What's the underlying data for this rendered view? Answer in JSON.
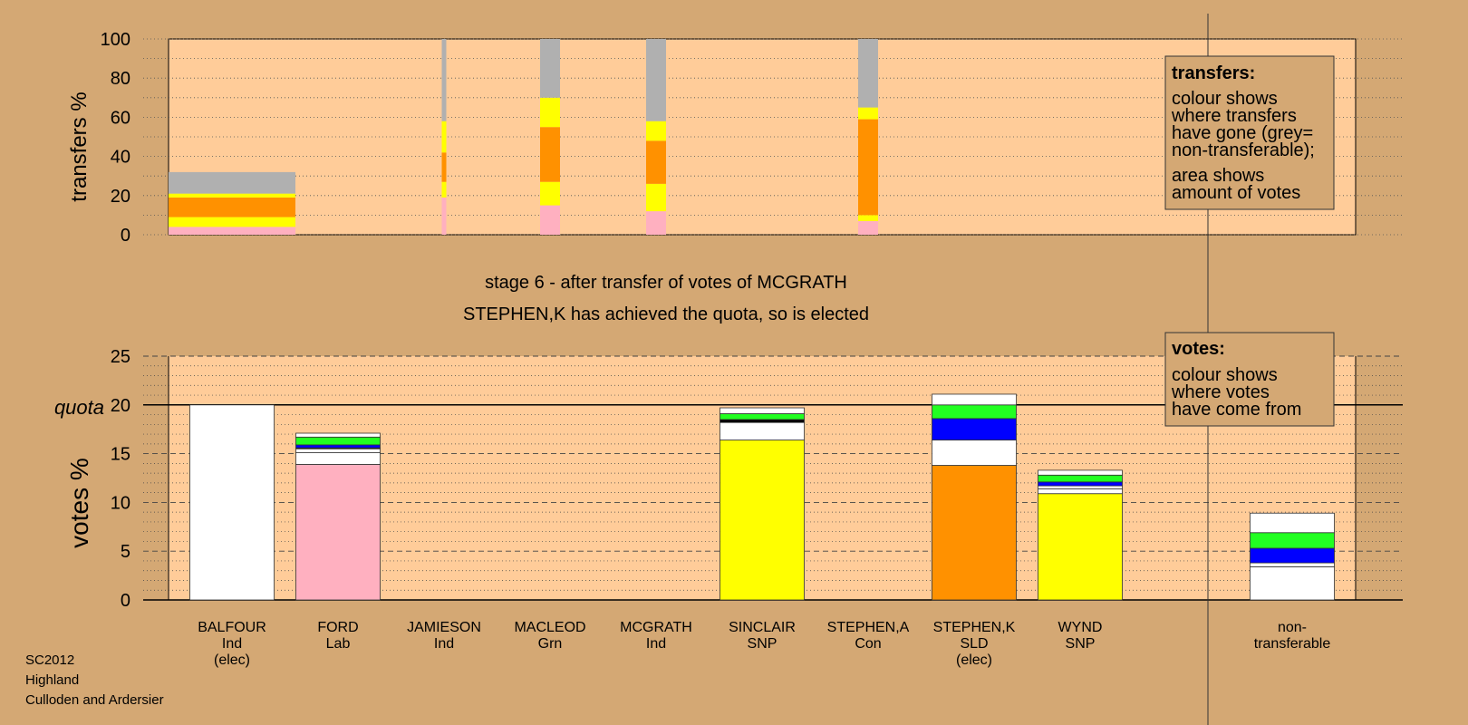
{
  "colors": {
    "background": "#d4a874",
    "plot_bg": "#ffcc99",
    "grey": "#b0b0b0",
    "yellow": "#ffff00",
    "orange": "#ff9100",
    "pink": "#ffb0c0",
    "white": "#ffffff",
    "blue": "#0000ff",
    "green": "#22ff22",
    "black": "#000000"
  },
  "stage_text": "stage 6 - after transfer of votes of MCGRATH",
  "elected_text": "STEPHEN,K has achieved the quota, so is elected",
  "footer": [
    "SC2012",
    "Highland",
    "Culloden and Ardersier"
  ],
  "legend_transfers": {
    "title": "transfers:",
    "lines": [
      "colour shows",
      "where transfers",
      "have gone (grey=",
      "non-transferable);",
      "area shows",
      "amount of votes"
    ]
  },
  "legend_votes": {
    "title": "votes:",
    "lines": [
      "colour shows",
      "where votes",
      "have come from"
    ]
  },
  "candidates": [
    {
      "name": "BALFOUR",
      "party": "Ind",
      "status": "(elec)"
    },
    {
      "name": "FORD",
      "party": "Lab",
      "status": ""
    },
    {
      "name": "JAMIESON",
      "party": "Ind",
      "status": ""
    },
    {
      "name": "MACLEOD",
      "party": "Grn",
      "status": ""
    },
    {
      "name": "MCGRATH",
      "party": "Ind",
      "status": ""
    },
    {
      "name": "SINCLAIR",
      "party": "SNP",
      "status": ""
    },
    {
      "name": "STEPHEN,A",
      "party": "Con",
      "status": ""
    },
    {
      "name": "STEPHEN,K",
      "party": "SLD",
      "status": "(elec)"
    },
    {
      "name": "WYND",
      "party": "SNP",
      "status": ""
    },
    {
      "name": "non-",
      "party": "transferable",
      "status": ""
    }
  ],
  "chart_data": [
    {
      "type": "bar",
      "stacked": true,
      "ylabel": "transfers %",
      "ylim": [
        0,
        100
      ],
      "yticks": [
        0,
        20,
        40,
        60,
        80,
        100
      ],
      "grid": true,
      "bars": [
        {
          "slot": 0,
          "width": "wide",
          "segments": [
            {
              "color": "pink",
              "value": 4
            },
            {
              "color": "yellow",
              "value": 5
            },
            {
              "color": "orange",
              "value": 10
            },
            {
              "color": "yellow",
              "value": 2
            },
            {
              "color": "grey",
              "value": 11
            }
          ]
        },
        {
          "slot": 2,
          "width": "hairline",
          "segments": [
            {
              "color": "pink",
              "value": 19
            },
            {
              "color": "yellow",
              "value": 8
            },
            {
              "color": "orange",
              "value": 15
            },
            {
              "color": "yellow",
              "value": 16
            },
            {
              "color": "grey",
              "value": 42
            }
          ]
        },
        {
          "slot": 3,
          "width": "narrow",
          "segments": [
            {
              "color": "pink",
              "value": 15
            },
            {
              "color": "yellow",
              "value": 12
            },
            {
              "color": "orange",
              "value": 28
            },
            {
              "color": "yellow",
              "value": 15
            },
            {
              "color": "grey",
              "value": 30
            }
          ]
        },
        {
          "slot": 4,
          "width": "narrow",
          "segments": [
            {
              "color": "pink",
              "value": 12
            },
            {
              "color": "yellow",
              "value": 14
            },
            {
              "color": "orange",
              "value": 22
            },
            {
              "color": "yellow",
              "value": 10
            },
            {
              "color": "grey",
              "value": 42
            }
          ]
        },
        {
          "slot": 6,
          "width": "narrow",
          "segments": [
            {
              "color": "pink",
              "value": 7
            },
            {
              "color": "yellow",
              "value": 3
            },
            {
              "color": "orange",
              "value": 49
            },
            {
              "color": "yellow",
              "value": 6
            },
            {
              "color": "grey",
              "value": 35
            }
          ]
        }
      ]
    },
    {
      "type": "bar",
      "stacked": true,
      "ylabel": "votes %",
      "ylim": [
        0,
        25
      ],
      "yticks": [
        0,
        5,
        10,
        15,
        20,
        25
      ],
      "quota": 20,
      "quota_label": "quota",
      "grid": true,
      "bars": [
        {
          "slot": 0,
          "segments": [
            {
              "color": "white",
              "value": 20
            }
          ]
        },
        {
          "slot": 1,
          "segments": [
            {
              "color": "pink",
              "value": 13.9
            },
            {
              "color": "white",
              "value": 1.2
            },
            {
              "color": "white",
              "value": 0.4
            },
            {
              "color": "black",
              "value": 0.1
            },
            {
              "color": "blue",
              "value": 0.3
            },
            {
              "color": "green",
              "value": 0.8
            },
            {
              "color": "white",
              "value": 0.4
            }
          ]
        },
        {
          "slot": 5,
          "segments": [
            {
              "color": "yellow",
              "value": 16.4
            },
            {
              "color": "white",
              "value": 1.8
            },
            {
              "color": "black",
              "value": 0.3
            },
            {
              "color": "green",
              "value": 0.6
            },
            {
              "color": "white",
              "value": 0.6
            }
          ]
        },
        {
          "slot": 7,
          "segments": [
            {
              "color": "orange",
              "value": 13.8
            },
            {
              "color": "white",
              "value": 2.6
            },
            {
              "color": "blue",
              "value": 2.2
            },
            {
              "color": "green",
              "value": 1.4
            },
            {
              "color": "white",
              "value": 1.1
            }
          ]
        },
        {
          "slot": 8,
          "segments": [
            {
              "color": "yellow",
              "value": 10.9
            },
            {
              "color": "white",
              "value": 0.5
            },
            {
              "color": "white",
              "value": 0.3
            },
            {
              "color": "blue",
              "value": 0.4
            },
            {
              "color": "green",
              "value": 0.7
            },
            {
              "color": "white",
              "value": 0.5
            }
          ]
        },
        {
          "slot": 10,
          "segments": [
            {
              "color": "white",
              "value": 3.4
            },
            {
              "color": "white",
              "value": 0.4
            },
            {
              "color": "blue",
              "value": 1.5
            },
            {
              "color": "green",
              "value": 1.6
            },
            {
              "color": "white",
              "value": 2.0
            }
          ]
        }
      ]
    }
  ]
}
